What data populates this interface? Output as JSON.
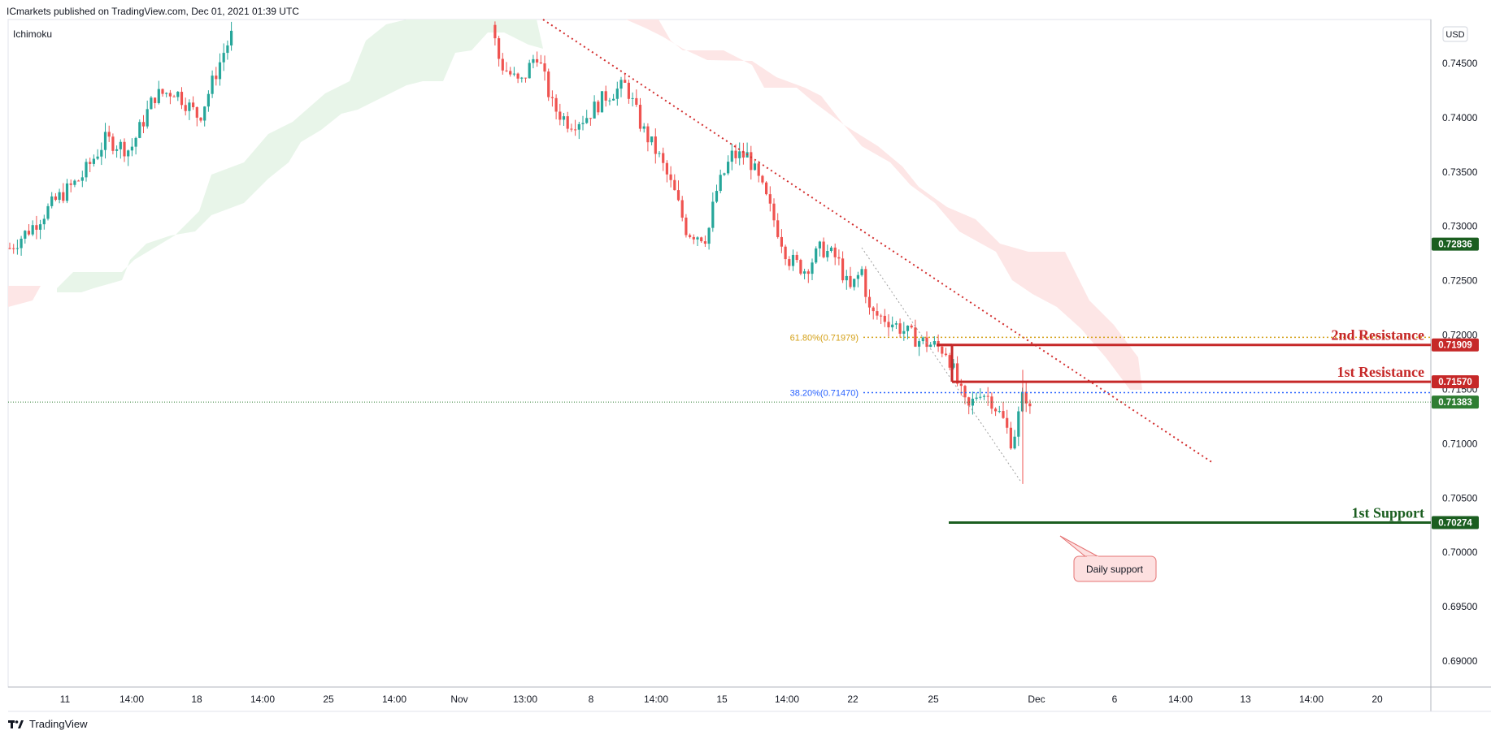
{
  "header": {
    "publisher_line": "ICmarkets published on TradingView.com, Dec 01, 2021 01:39 UTC"
  },
  "indicator_label": "Ichimoku",
  "currency_label": "USD",
  "footer": {
    "brand": "TradingView"
  },
  "colors": {
    "bull": "#26a69a",
    "bear": "#ef5350",
    "cloud_bull": "#e8f5e9",
    "cloud_bear": "#fde6e6",
    "resistance": "#c62828",
    "support": "#1b5e20",
    "fib_618": "#d4a017",
    "fib_382": "#2962ff",
    "current_price": "#2e7d32"
  },
  "chart_data": {
    "type": "candlestick",
    "symbol_timeframe": "4h",
    "ylim": [
      0.6865,
      0.7495
    ],
    "y_ticks": [
      "0.74500",
      "0.74000",
      "0.73500",
      "0.73000",
      "0.72500",
      "0.72000",
      "0.71500",
      "0.71000",
      "0.70500",
      "0.70000",
      "0.69500",
      "0.69000"
    ],
    "x_ticks": [
      "11",
      "14:00",
      "18",
      "14:00",
      "25",
      "14:00",
      "Nov",
      "13:00",
      "8",
      "14:00",
      "15",
      "14:00",
      "22",
      "25",
      "Dec",
      "6",
      "14:00",
      "13",
      "14:00",
      "20"
    ],
    "price_labels": [
      {
        "name": "cloud-edge",
        "text": "0.72836",
        "value": 0.72836,
        "style": "support"
      },
      {
        "name": "second-resistance",
        "text": "0.71909",
        "value": 0.71909,
        "style": "resistance"
      },
      {
        "name": "first-resistance",
        "text": "0.71570",
        "value": 0.7157,
        "style": "resistance"
      },
      {
        "name": "current-price",
        "text": "0.71383",
        "value": 0.71383,
        "style": "current_price"
      },
      {
        "name": "first-support",
        "text": "0.70274",
        "value": 0.70274,
        "style": "support"
      }
    ],
    "levels": [
      {
        "name": "2nd Resistance",
        "value": 0.71909
      },
      {
        "name": "1st Resistance",
        "value": 0.7157
      },
      {
        "name": "1st Support",
        "value": 0.70274
      }
    ],
    "fibonacci": [
      {
        "label": "61.80%(0.71979)",
        "value": 0.71979
      },
      {
        "label": "38.20%(0.71470)",
        "value": 0.7147
      }
    ],
    "annotation": "Daily support",
    "current_price": 0.71383
  }
}
